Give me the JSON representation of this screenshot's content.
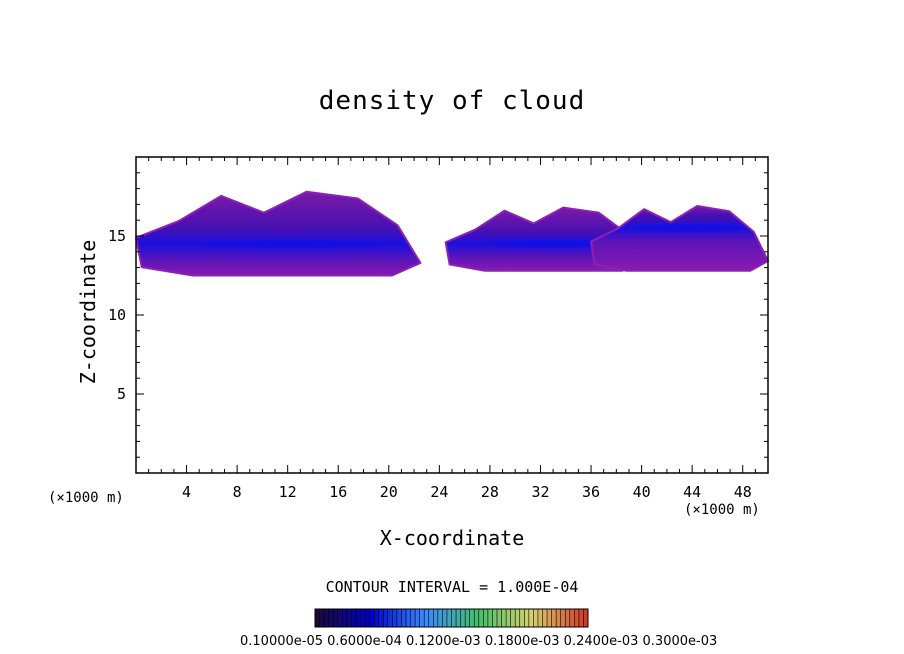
{
  "chart_data": {
    "type": "heatmap",
    "title": "density of cloud",
    "xlabel": "X-coordinate",
    "ylabel": "Z-coordinate",
    "x_unit": "(×1000 m)",
    "xlim": [
      0,
      50
    ],
    "ylim": [
      0,
      20
    ],
    "x_ticks": [
      4,
      8,
      12,
      16,
      20,
      24,
      28,
      32,
      36,
      40,
      44,
      48
    ],
    "y_ticks": [
      5,
      10,
      15
    ],
    "contour_interval_text": "CONTOUR INTERVAL = 1.000E-04",
    "colorbar_labels_text": "0.10000e-05 0.6000e-04 0.1200e-03 0.1800e-03 0.2400e-03 0.3000e-03",
    "colorbar_colors": [
      "#1a0a3a",
      "#0000cc",
      "#3a8aff",
      "#44c06a",
      "#d8d070",
      "#d03a2a"
    ],
    "cloud_regions": [
      {
        "x_range": [
          0,
          22.5
        ],
        "z_range": [
          12.5,
          17.8
        ],
        "core_z": 14.5
      },
      {
        "x_range": [
          24.5,
          40
        ],
        "z_range": [
          12.8,
          16.8
        ],
        "core_z": 14.5
      },
      {
        "x_range": [
          36,
          50
        ],
        "z_range": [
          12.8,
          16.9
        ],
        "core_z": 15.5
      }
    ]
  }
}
